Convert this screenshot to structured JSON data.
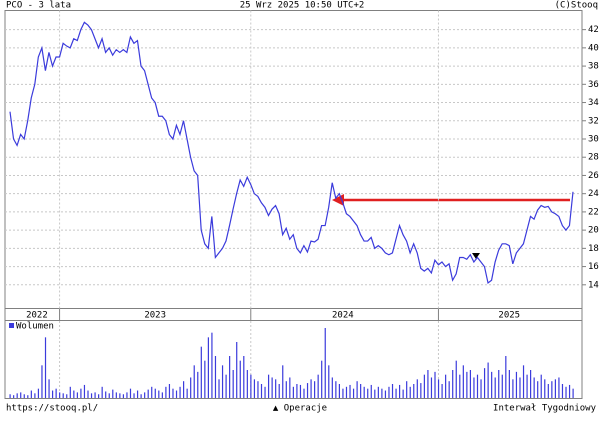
{
  "header": {
    "title": "PCO - 3 lata",
    "date": "25 Wrz 2025 10:50 UTC+2",
    "source": "(C)Stooq"
  },
  "footer": {
    "url": "https://stooq.pl/",
    "operations": "▲ Operacje",
    "interval": "Interwał Tygodniowy"
  },
  "chart_data": [
    {
      "type": "line",
      "color": "#3b3bdc",
      "xlim": [
        0,
        159
      ],
      "xticks": [
        14,
        68,
        121
      ],
      "year_labels": [
        {
          "value": 7.6,
          "label": "2022"
        },
        {
          "value": 41,
          "label": "2023"
        },
        {
          "value": 94,
          "label": "2024"
        },
        {
          "value": 141,
          "label": "2025"
        }
      ],
      "ylim": [
        11.4,
        44.1
      ],
      "yticks": [
        14,
        16,
        18,
        20,
        22,
        24,
        26,
        28,
        30,
        32,
        34,
        36,
        38,
        40,
        42
      ],
      "grid": true,
      "values": [
        33,
        30,
        29.3,
        30.5,
        30,
        32,
        34.5,
        36,
        39,
        40,
        37.5,
        39.5,
        38,
        39,
        39,
        40.5,
        40.2,
        40,
        41,
        40.8,
        42,
        42.8,
        42.5,
        42,
        41,
        40,
        41,
        39.5,
        40,
        39.2,
        39.8,
        39.5,
        39.8,
        39.5,
        41.2,
        40.5,
        40.8,
        38,
        37.5,
        36,
        34.5,
        34,
        32.5,
        32.5,
        32,
        30.5,
        30,
        31.5,
        30.5,
        32,
        30,
        28,
        26.5,
        26,
        20,
        18.5,
        18,
        21.5,
        17,
        17.5,
        18,
        18.8,
        20.5,
        22.3,
        24,
        25.5,
        24.8,
        25.8,
        25,
        24,
        23.7,
        23,
        22.5,
        21.6,
        22.3,
        22.7,
        21.8,
        19.5,
        20.2,
        19,
        19.5,
        18,
        17.5,
        18.3,
        17.6,
        18.8,
        18.7,
        19,
        20.5,
        20.5,
        22.5,
        25.2,
        23.5,
        24,
        23,
        21.8,
        21.5,
        21,
        20.5,
        19.5,
        18.8,
        18.8,
        19.2,
        18,
        18.3,
        18,
        17.5,
        17.3,
        17.5,
        19,
        20.5,
        19.5,
        18.8,
        17.5,
        18.5,
        17.5,
        15.8,
        15.5,
        15.8,
        15.3,
        16.7,
        16.2,
        16.5,
        16,
        16.3,
        14.5,
        15.2,
        17,
        17,
        16.8,
        17.3,
        16.5,
        17,
        16.5,
        16,
        14.2,
        14.5,
        16.5,
        17.8,
        18.5,
        18.5,
        18.3,
        16.3,
        17.5,
        18,
        18.5,
        20,
        21.5,
        21.2,
        22.2,
        22.7,
        22.5,
        22.6,
        22,
        21.8,
        21.5,
        20.5,
        20,
        20.5,
        24.2
      ]
    },
    {
      "type": "bar",
      "color": "#3b3bdc",
      "series": [
        {
          "name": "Wolumen",
          "color": "#3b3bdc",
          "values": [
            4,
            3,
            5,
            6,
            4,
            3,
            8,
            5,
            10,
            35,
            65,
            20,
            8,
            10,
            6,
            5,
            4,
            12,
            8,
            6,
            10,
            14,
            8,
            5,
            6,
            4,
            12,
            7,
            5,
            9,
            6,
            5,
            4,
            6,
            10,
            5,
            8,
            4,
            6,
            9,
            12,
            10,
            8,
            6,
            12,
            15,
            10,
            8,
            12,
            18,
            10,
            22,
            35,
            28,
            55,
            40,
            65,
            70,
            45,
            20,
            35,
            25,
            45,
            30,
            60,
            40,
            45,
            30,
            25,
            20,
            18,
            15,
            12,
            25,
            22,
            20,
            15,
            35,
            18,
            22,
            12,
            15,
            14,
            10,
            16,
            20,
            18,
            25,
            40,
            75,
            35,
            22,
            18,
            15,
            10,
            12,
            14,
            10,
            18,
            15,
            12,
            10,
            14,
            9,
            12,
            10,
            8,
            12,
            15,
            10,
            14,
            9,
            18,
            12,
            15,
            20,
            16,
            25,
            30,
            22,
            28,
            20,
            15,
            25,
            18,
            30,
            40,
            25,
            35,
            28,
            30,
            22,
            25,
            20,
            32,
            38,
            28,
            22,
            30,
            25,
            45,
            30,
            20,
            28,
            22,
            35,
            25,
            30,
            22,
            18,
            25,
            20,
            15,
            18,
            20,
            22,
            15,
            12,
            14,
            10
          ]
        }
      ]
    }
  ]
}
